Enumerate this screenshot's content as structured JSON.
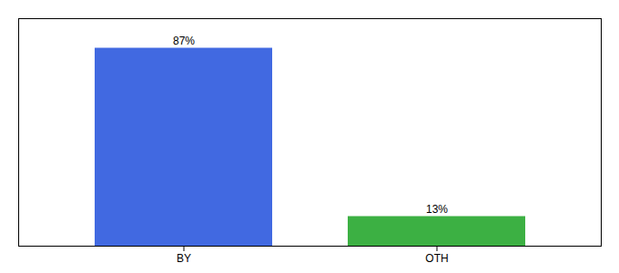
{
  "chart_data": {
    "type": "bar",
    "categories": [
      "BY",
      "OTH"
    ],
    "values": [
      87,
      13
    ],
    "value_labels": [
      "87%",
      "13%"
    ],
    "colors": [
      "#4169e1",
      "#3cb043"
    ],
    "data_labels": true,
    "ylim": [
      0,
      100
    ],
    "grid": false,
    "tick_labels": "x"
  }
}
